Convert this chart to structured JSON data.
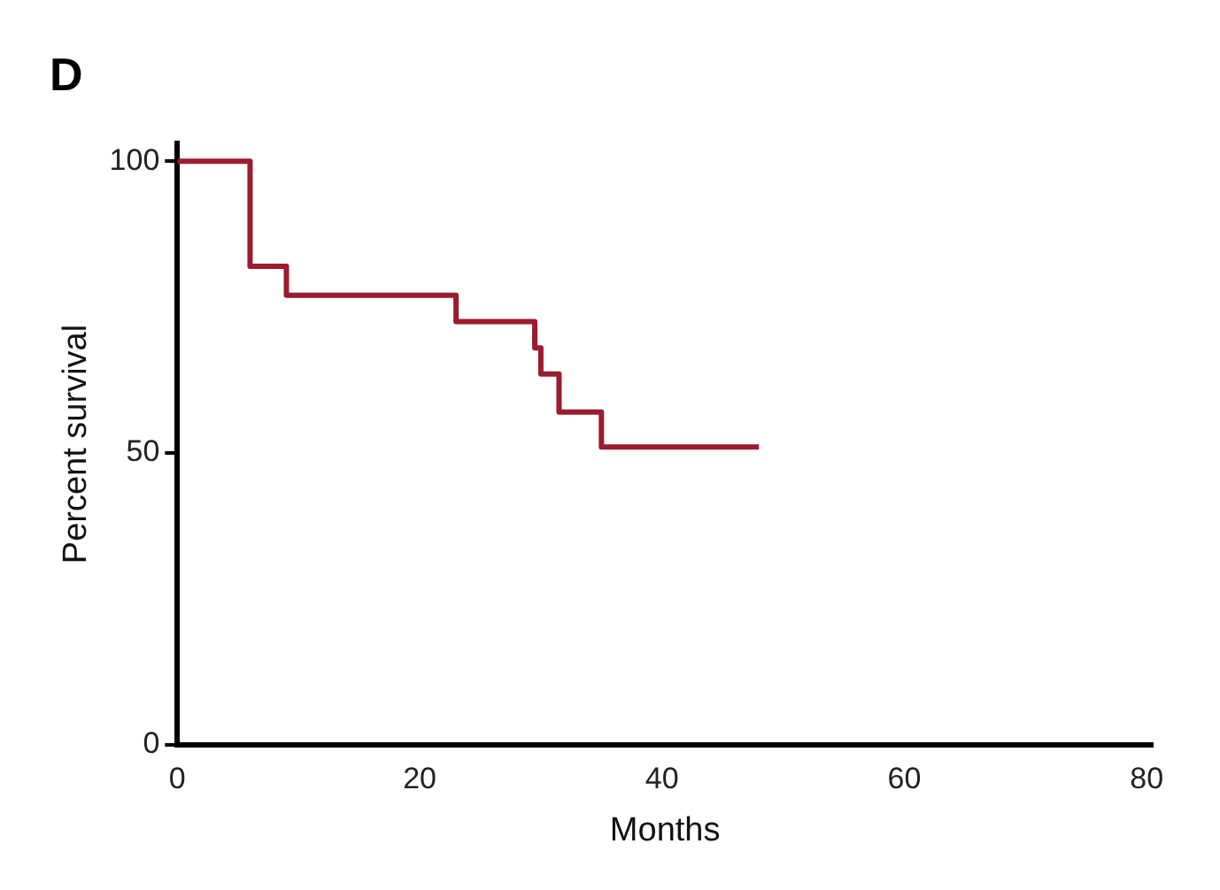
{
  "chart_data": {
    "type": "step",
    "title": "D",
    "xlabel": "Months",
    "ylabel": "Percent survival",
    "x": [
      0,
      6,
      9,
      23,
      29.5,
      30,
      31.5,
      35,
      48
    ],
    "series": [
      {
        "color": "#9b1b30",
        "values": [
          100,
          82,
          77,
          72.5,
          68,
          63.5,
          57,
          51,
          51
        ]
      }
    ],
    "xlim": [
      0,
      80.5
    ],
    "xticks": [
      0,
      20,
      40,
      60,
      80
    ],
    "ylim": [
      0,
      103
    ],
    "yticks": [
      0,
      50,
      100
    ],
    "grid": false,
    "legend": false
  }
}
